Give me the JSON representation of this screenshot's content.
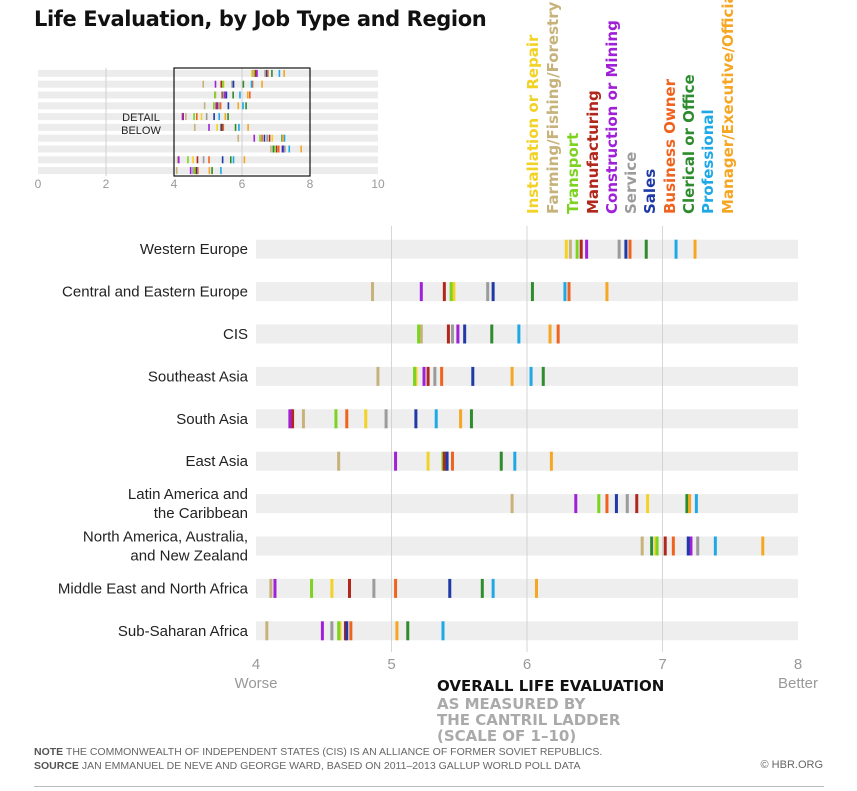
{
  "title": "Life Evaluation, by Job Type and Region",
  "overview": {
    "ticks": [
      "0",
      "2",
      "4",
      "6",
      "8",
      "10"
    ],
    "detail_label_line1": "DETAIL",
    "detail_label_line2": "BELOW",
    "xlim": [
      0,
      10
    ],
    "detail_range": [
      4,
      8
    ]
  },
  "chart_data": {
    "type": "scatter",
    "title": "Life Evaluation, by Job Type and Region",
    "xlabel": "OVERALL LIFE EVALUATION",
    "xlabel_sub": [
      "AS MEASURED BY",
      "THE CANTRIL LADDER",
      "(SCALE OF 1–10)"
    ],
    "xlim": [
      4,
      8
    ],
    "ticks": [
      "4",
      "5",
      "6",
      "7",
      "8"
    ],
    "low_label": "Worse",
    "high_label": "Better",
    "grid": true,
    "legend_position": "top",
    "categories": [
      "Western Europe",
      "Central and Eastern Europe",
      "CIS",
      "Southeast Asia",
      "South Asia",
      "East Asia",
      "Latin America and the Caribbean",
      "North America, Australia, and New Zealand",
      "Middle East and North Africa",
      "Sub-Saharan Africa"
    ],
    "category_lines": [
      [
        "Western Europe"
      ],
      [
        "Central and Eastern Europe"
      ],
      [
        "CIS"
      ],
      [
        "Southeast Asia"
      ],
      [
        "South Asia"
      ],
      [
        "East Asia"
      ],
      [
        "Latin America and",
        "the Caribbean"
      ],
      [
        "North America, Australia,",
        "and New Zealand"
      ],
      [
        "Middle East and North Africa"
      ],
      [
        "Sub-Saharan Africa"
      ]
    ],
    "series": [
      {
        "name": "Installation or Repair",
        "color": "#f2d224",
        "values": [
          6.29,
          5.46,
          5.21,
          5.18,
          4.81,
          5.27,
          6.89,
          6.95,
          4.56,
          4.62
        ]
      },
      {
        "name": "Farming/Fishing/Forestry",
        "color": "#c6b27a",
        "values": [
          6.32,
          4.86,
          5.22,
          4.9,
          4.35,
          4.61,
          5.89,
          6.85,
          4.11,
          4.08
        ]
      },
      {
        "name": "Transport",
        "color": "#7ed321",
        "values": [
          6.37,
          5.44,
          5.2,
          5.17,
          4.59,
          5.38,
          6.53,
          6.96,
          4.41,
          4.61
        ]
      },
      {
        "name": "Manufacturing",
        "color": "#b2271b",
        "values": [
          6.4,
          5.39,
          5.42,
          5.27,
          4.27,
          5.39,
          6.81,
          7.02,
          4.69,
          4.66
        ]
      },
      {
        "name": "Construction or Mining",
        "color": "#a020d8",
        "values": [
          6.44,
          5.22,
          5.49,
          5.24,
          4.25,
          5.03,
          6.36,
          7.21,
          4.14,
          4.49
        ]
      },
      {
        "name": "Service",
        "color": "#9b9b9b",
        "values": [
          6.68,
          5.71,
          5.45,
          5.32,
          4.96,
          5.41,
          6.74,
          7.26,
          4.87,
          4.56
        ]
      },
      {
        "name": "Sales",
        "color": "#1f3aa6",
        "values": [
          6.73,
          5.75,
          5.54,
          5.6,
          5.18,
          5.41,
          6.66,
          7.19,
          5.43,
          4.67
        ]
      },
      {
        "name": "Business Owner",
        "color": "#f0631f",
        "values": [
          6.76,
          6.31,
          6.23,
          5.37,
          4.67,
          5.45,
          6.59,
          7.08,
          5.03,
          4.7
        ]
      },
      {
        "name": "Clerical or Office",
        "color": "#2e8b2e",
        "values": [
          6.88,
          6.04,
          5.74,
          6.12,
          5.59,
          5.81,
          7.18,
          6.92,
          5.67,
          5.12
        ]
      },
      {
        "name": "Professional",
        "color": "#1ea9e6",
        "values": [
          7.1,
          6.28,
          5.94,
          6.03,
          5.33,
          5.91,
          7.25,
          7.39,
          5.75,
          5.38
        ]
      },
      {
        "name": "Manager/Executive/Official",
        "color": "#f5a623",
        "values": [
          7.24,
          6.59,
          6.17,
          5.89,
          5.51,
          6.18,
          7.2,
          7.74,
          6.07,
          5.04
        ]
      }
    ]
  },
  "footer": {
    "note_label": "NOTE",
    "note_text": "The Commonwealth of Independent States (CIS) is an alliance of former Soviet republics.",
    "source_label": "SOURCE",
    "source_text": "Jan Emmanuel De Neve and George Ward, based on 2011–2013 Gallup World Poll data",
    "credit": "© HBR.ORG"
  }
}
